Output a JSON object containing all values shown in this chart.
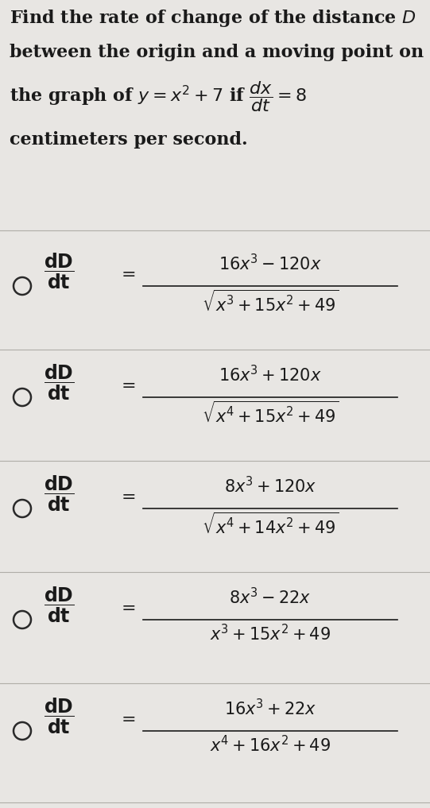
{
  "background_color": "#e8e6e3",
  "text_color": "#1a1a1a",
  "circle_color": "#2a2a2a",
  "q_line1": "Find the rate of change of the distance $D$",
  "q_line2": "between the origin and a moving point on",
  "q_line3": "the graph of $y = x^2 + 7$ if $\\dfrac{dx}{dt} = 8$",
  "q_line4": "centimeters per second.",
  "options": [
    {
      "lhs": "$\\dfrac{dD}{dt}$",
      "numerator": "$16x^3 - 120x$",
      "denominator": "$\\sqrt{x^3 + 15x^2 + 49}$"
    },
    {
      "lhs": "$\\dfrac{dD}{dt}$",
      "numerator": "$16x^3 + 120x$",
      "denominator": "$\\sqrt{x^4 + 15x^2 + 49}$"
    },
    {
      "lhs": "$\\dfrac{dD}{dt}$",
      "numerator": "$8x^3 + 120x$",
      "denominator": "$\\sqrt{x^4 + 14x^2 + 49}$"
    },
    {
      "lhs": "$\\dfrac{dD}{dt}$",
      "numerator": "$8x^3 - 22x$",
      "denominator": "$x^3 + 15x^2 + 49$"
    },
    {
      "lhs": "$\\dfrac{dD}{dt}$",
      "numerator": "$16x^3 + 22x$",
      "denominator": "$x^4 + 16x^2 + 49$"
    }
  ],
  "separator_color": "#b0aea8",
  "q_fontsize": 16,
  "opt_fontsize": 15,
  "fig_width": 5.41,
  "fig_height": 10.17,
  "dpi": 100
}
